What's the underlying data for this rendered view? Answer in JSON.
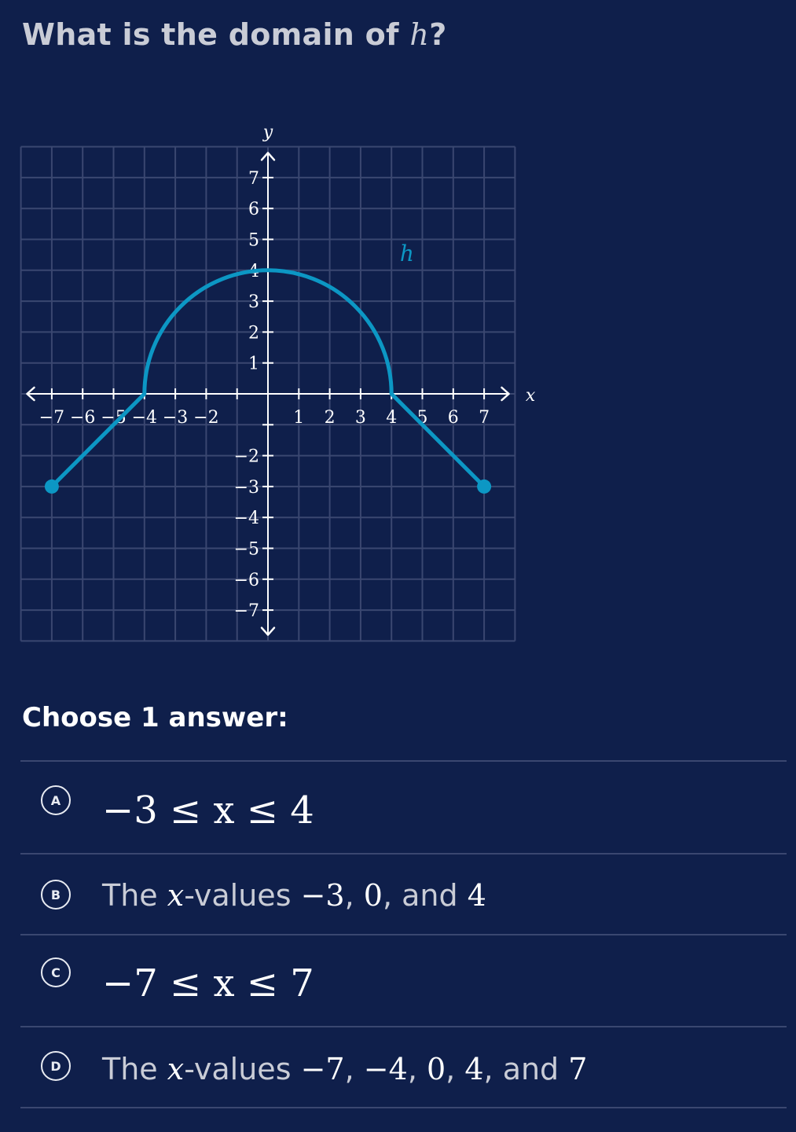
{
  "question": {
    "prefix": "What is the domain of ",
    "var": "h",
    "suffix": "?"
  },
  "chart_data": {
    "type": "line",
    "title": "",
    "xlabel": "x",
    "ylabel": "y",
    "xlim": [
      -8,
      8
    ],
    "ylim": [
      -8,
      8
    ],
    "grid": true,
    "x_ticks": [
      "−7",
      "−6",
      "−5",
      "−4",
      "−3",
      "−2",
      "1",
      "2",
      "3",
      "4",
      "5",
      "6",
      "7"
    ],
    "y_ticks": [
      "7",
      "6",
      "5",
      "4",
      "3",
      "2",
      "1",
      "−2",
      "−3",
      "−4",
      "−5",
      "−6",
      "−7"
    ],
    "series": [
      {
        "name": "h",
        "color": "#0c97c4",
        "segments": [
          {
            "kind": "line",
            "points": [
              [
                -7,
                -3
              ],
              [
                -4,
                0
              ]
            ]
          },
          {
            "kind": "semicircle",
            "center": [
              0,
              0
            ],
            "radius": 4,
            "from_x": -4,
            "to_x": 4
          },
          {
            "kind": "line",
            "points": [
              [
                4,
                0
              ],
              [
                7,
                -3
              ]
            ]
          }
        ],
        "endpoints": [
          [
            -7,
            -3
          ],
          [
            7,
            -3
          ]
        ]
      }
    ]
  },
  "prompt": "Choose 1 answer:",
  "choices": [
    {
      "letter": "A",
      "math": "−3 ≤ x ≤ 4"
    },
    {
      "letter": "B",
      "text_prefix": "The ",
      "var": "x",
      "text_mid": "-values ",
      "v1": "−3",
      "sep1": ", ",
      "v2": "0",
      "sep2": ", and ",
      "v3": "4"
    },
    {
      "letter": "C",
      "math": "−7 ≤ x ≤ 7"
    },
    {
      "letter": "D",
      "text_prefix": "The ",
      "var": "x",
      "text_mid": "-values ",
      "v1": "−7",
      "sep1": ", ",
      "v2": "−4",
      "sep2": ", ",
      "v3": "0",
      "sep3": ", ",
      "v4": "4",
      "sep4": ", and ",
      "v5": "7"
    }
  ],
  "colors": {
    "background": "#0f1f4b",
    "curve": "#0c97c4",
    "grid": "#3a4770",
    "axis": "#ffffff"
  }
}
